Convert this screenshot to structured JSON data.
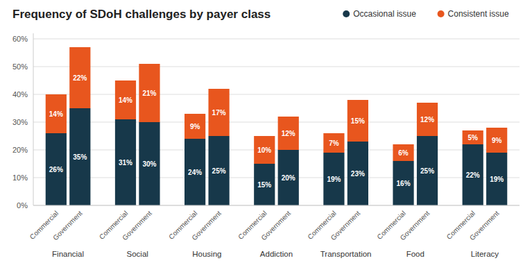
{
  "chart_data": {
    "type": "bar",
    "title": "Frequency of SDoH challenges by payer class",
    "categories": [
      "Commercial",
      "Government",
      "Commercial",
      "Government",
      "Commercial",
      "Government",
      "Commercial",
      "Government",
      "Commercial",
      "Government",
      "Commercial",
      "Government",
      "Commercial",
      "Government"
    ],
    "groups": [
      "Financial",
      "Social",
      "Housing",
      "Addiction",
      "Transportation",
      "Food",
      "Literacy"
    ],
    "series": [
      {
        "name": "Occasional issue",
        "color": "#17384a",
        "values": [
          26,
          35,
          31,
          30,
          24,
          25,
          15,
          20,
          19,
          23,
          16,
          25,
          22,
          19
        ],
        "value_labels": [
          "26%",
          "35%",
          "31%",
          "30%",
          "24%",
          "25%",
          "15%",
          "20%",
          "19%",
          "23%",
          "16%",
          "25%",
          "22%",
          "19%"
        ]
      },
      {
        "name": "Consistent issue",
        "color": "#e8561e",
        "values": [
          14,
          22,
          14,
          21,
          9,
          17,
          10,
          12,
          7,
          15,
          6,
          12,
          5,
          9
        ],
        "value_labels": [
          "14%",
          "22%",
          "14%",
          "21%",
          "9%",
          "17%",
          "10%",
          "12%",
          "7%",
          "15%",
          "6%",
          "12%",
          "5%",
          "9%"
        ]
      }
    ],
    "stacked": true,
    "data_labels": true,
    "grid": true,
    "legend": "upper right",
    "ylim": [
      0,
      62
    ],
    "yticks": [
      {
        "value": 0,
        "label": "0%"
      },
      {
        "value": 10,
        "label": "10%"
      },
      {
        "value": 20,
        "label": "20%"
      },
      {
        "value": 30,
        "label": "30%"
      },
      {
        "value": 40,
        "label": "40%"
      },
      {
        "value": 50,
        "label": "50%"
      },
      {
        "value": 60,
        "label": "60%"
      }
    ]
  }
}
